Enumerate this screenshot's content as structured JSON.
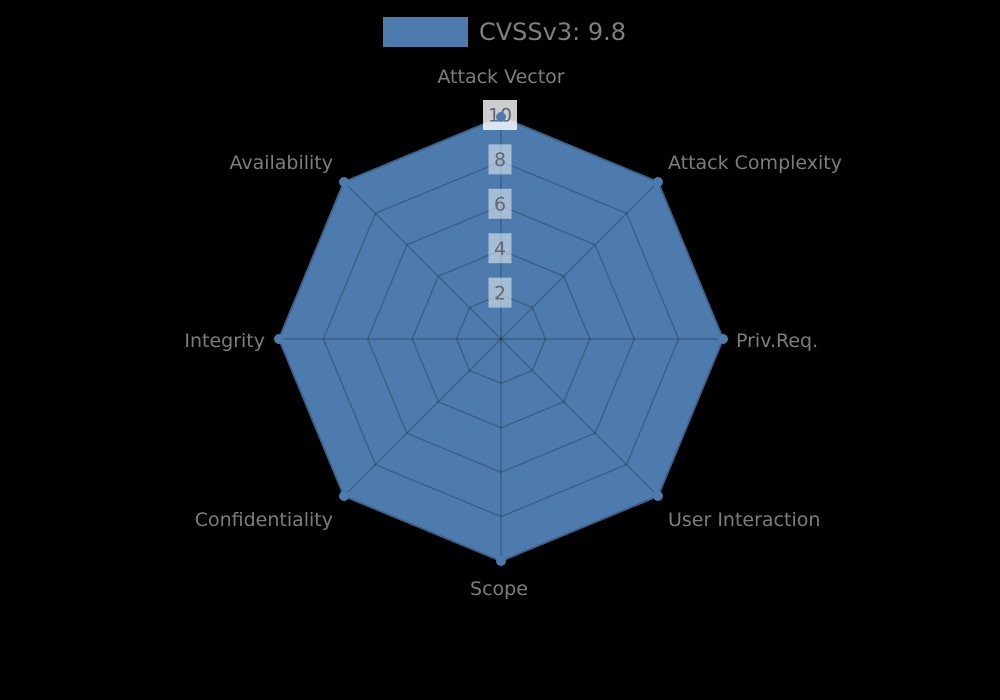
{
  "page": {
    "background_color": "#000000"
  },
  "legend": {
    "label": "CVSSv3: 9.8",
    "swatch_color": "#4D7BAD"
  },
  "colors": {
    "series_fill": "#4D7BAD",
    "series_stroke": "#4D7BAD",
    "grid_line": "rgba(0,0,0,0.22)",
    "axis_label_text": "#7d7d7d",
    "tick_text": "#5f6772",
    "tick_box": "rgba(255,255,255,0.5)",
    "tick_box_outer": "rgba(255,255,255,0.8)",
    "legend_text": "#7f7f7f"
  },
  "chart_data": {
    "type": "radar",
    "categories": [
      "Attack Vector",
      "Attack Complexity",
      "Priv.Req.",
      "User Interaction",
      "Scope",
      "Confidentiality",
      "Integrity",
      "Availability"
    ],
    "series": [
      {
        "name": "CVSSv3: 9.8",
        "values": [
          10,
          10,
          10,
          10,
          10,
          10,
          10,
          10
        ]
      }
    ],
    "radial_ticks": [
      2,
      4,
      6,
      8,
      10
    ],
    "range": [
      0,
      10
    ],
    "grid": true,
    "legend_position": "top-center",
    "start_axis": "top",
    "direction": "clockwise"
  }
}
